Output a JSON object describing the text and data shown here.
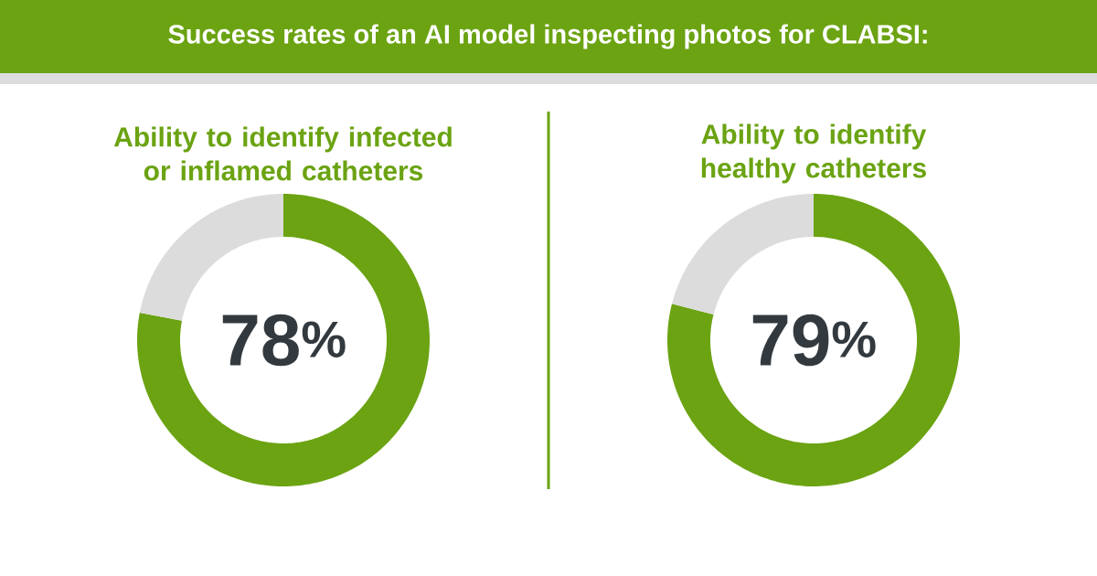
{
  "chart_data": [
    {
      "type": "donut",
      "title": "Success rates of an AI model inspecting photos for CLABSI:",
      "subtitle": "Ability to identify infected or inflamed catheters",
      "categories": [
        null,
        null
      ],
      "values": [
        78,
        22
      ],
      "colors": [
        "#6ba312",
        "#dcdcdc"
      ],
      "value_labels": [
        "78$^{%}$",
        null
      ]
    },
    {
      "type": "donut",
      "subtitle": "Ability to identify healthy catheters",
      "categories": [
        null,
        null
      ],
      "values": [
        79,
        21
      ],
      "colors": [
        "#6ba312",
        "#dcdcdc"
      ],
      "value_labels": [
        "79$^{%}$",
        null
      ]
    }
  ]
}
